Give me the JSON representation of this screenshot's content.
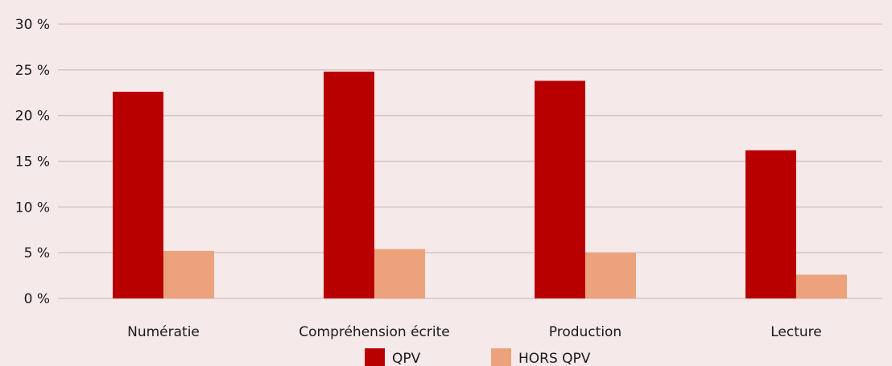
{
  "chart_data": {
    "type": "bar",
    "categories": [
      "Numératie",
      "Compréhension écrite",
      "Production",
      "Lecture"
    ],
    "series": [
      {
        "name": "QPV",
        "values": [
          22.6,
          24.8,
          23.8,
          16.2
        ],
        "color": "#b90000"
      },
      {
        "name": "HORS QPV",
        "values": [
          5.2,
          5.4,
          5.0,
          2.6
        ],
        "color": "#eca37b"
      }
    ],
    "yticks": [
      "0 %",
      "5 %",
      "10 %",
      "15 %",
      "20 %",
      "25 %",
      "30 %"
    ],
    "ylim": [
      0,
      30
    ],
    "ystep": 5,
    "grid": true,
    "legend": "bottom"
  }
}
